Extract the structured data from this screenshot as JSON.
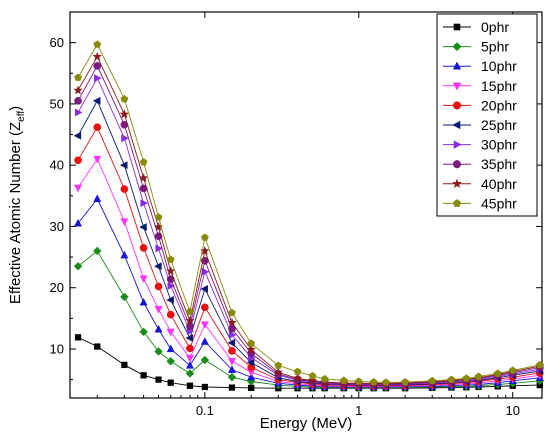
{
  "chart_data": {
    "type": "line",
    "xlabel": "Energy (MeV)",
    "ylabel": {
      "main": "Effective Atomic Number (Z",
      "sub": "eff",
      "tail": ")"
    },
    "x_scale": "log",
    "xlim": [
      0.0133,
      15.5
    ],
    "ylim": [
      2.0,
      65.0
    ],
    "x_ticks": [
      {
        "value": 0.1,
        "label": "0.1"
      },
      {
        "value": 1,
        "label": "1"
      },
      {
        "value": 10,
        "label": "10"
      }
    ],
    "y_ticks": [
      10,
      20,
      30,
      40,
      50,
      60
    ],
    "grid": false,
    "legend_position": "top-right",
    "x": [
      0.015,
      0.02,
      0.03,
      0.04,
      0.05,
      0.06,
      0.08,
      0.1,
      0.15,
      0.2,
      0.3,
      0.4,
      0.5,
      0.6,
      0.8,
      1,
      1.25,
      1.5,
      2,
      3,
      4,
      5,
      6,
      8,
      10,
      15
    ],
    "series": [
      {
        "name": "0phr",
        "color": "#000000",
        "marker": "square",
        "values": [
          11.9,
          10.4,
          7.4,
          5.7,
          5.0,
          4.5,
          4.0,
          3.8,
          3.7,
          3.65,
          3.6,
          3.6,
          3.6,
          3.6,
          3.6,
          3.6,
          3.6,
          3.6,
          3.6,
          3.65,
          3.7,
          3.75,
          3.8,
          3.9,
          4.0,
          4.1
        ]
      },
      {
        "name": "5phr",
        "color": "#1a8c1a",
        "marker": "diamond",
        "values": [
          23.5,
          26.0,
          18.5,
          12.8,
          9.6,
          8.0,
          6.0,
          8.2,
          5.4,
          4.7,
          4.1,
          3.9,
          3.8,
          3.75,
          3.7,
          3.7,
          3.7,
          3.7,
          3.75,
          3.8,
          3.85,
          3.9,
          4.0,
          4.2,
          4.4,
          4.8
        ]
      },
      {
        "name": "10phr",
        "color": "#1515d8",
        "marker": "triangle-up",
        "values": [
          30.5,
          34.5,
          25.3,
          17.6,
          13.2,
          10.0,
          7.3,
          11.2,
          6.6,
          5.4,
          4.4,
          4.1,
          3.95,
          3.85,
          3.8,
          3.8,
          3.8,
          3.8,
          3.85,
          3.9,
          4.0,
          4.1,
          4.2,
          4.5,
          4.8,
          5.3
        ]
      },
      {
        "name": "15phr",
        "color": "#ff33ff",
        "marker": "triangle-down",
        "values": [
          36.3,
          41.0,
          30.8,
          21.5,
          16.5,
          12.8,
          8.5,
          14.0,
          8.0,
          6.2,
          4.7,
          4.3,
          4.1,
          4.0,
          3.9,
          3.9,
          3.9,
          3.9,
          3.95,
          4.05,
          4.2,
          4.3,
          4.45,
          4.8,
          5.1,
          5.7
        ]
      },
      {
        "name": "20phr",
        "color": "#e81010",
        "marker": "circle",
        "values": [
          40.8,
          46.2,
          36.1,
          26.5,
          20.2,
          15.6,
          10.1,
          16.8,
          9.7,
          7.0,
          5.0,
          4.55,
          4.3,
          4.15,
          4.05,
          4.0,
          4.0,
          4.0,
          4.05,
          4.2,
          4.35,
          4.5,
          4.7,
          5.1,
          5.4,
          6.1
        ]
      },
      {
        "name": "25phr",
        "color": "#0a1a6e",
        "marker": "triangle-left",
        "values": [
          44.8,
          50.5,
          40.0,
          29.9,
          23.5,
          18.0,
          11.8,
          19.8,
          11.0,
          7.8,
          5.3,
          4.7,
          4.45,
          4.3,
          4.15,
          4.1,
          4.1,
          4.1,
          4.15,
          4.3,
          4.5,
          4.65,
          4.85,
          5.3,
          5.7,
          6.4
        ]
      },
      {
        "name": "30phr",
        "color": "#8a2be2",
        "marker": "triangle-right",
        "values": [
          48.6,
          54.2,
          44.4,
          33.8,
          26.4,
          20.3,
          12.9,
          22.6,
          12.3,
          8.6,
          5.7,
          4.9,
          4.6,
          4.4,
          4.25,
          4.2,
          4.2,
          4.2,
          4.25,
          4.45,
          4.6,
          4.8,
          5.0,
          5.5,
          5.9,
          6.7
        ]
      },
      {
        "name": "35phr",
        "color": "#7a1a80",
        "marker": "circle",
        "values": [
          50.5,
          56.2,
          46.6,
          36.2,
          28.4,
          21.4,
          13.7,
          24.4,
          13.3,
          9.3,
          5.9,
          5.05,
          4.7,
          4.5,
          4.35,
          4.3,
          4.3,
          4.3,
          4.35,
          4.55,
          4.75,
          4.95,
          5.15,
          5.7,
          6.1,
          7.0
        ]
      },
      {
        "name": "40phr",
        "color": "#8b1a1a",
        "marker": "star",
        "values": [
          52.2,
          57.7,
          48.3,
          37.9,
          29.9,
          22.7,
          14.6,
          26.0,
          14.3,
          9.9,
          6.2,
          5.2,
          4.85,
          4.6,
          4.45,
          4.4,
          4.4,
          4.4,
          4.45,
          4.65,
          4.85,
          5.05,
          5.3,
          5.85,
          6.3,
          7.2
        ]
      },
      {
        "name": "45phr",
        "color": "#8a8a0a",
        "marker": "pentagon",
        "values": [
          54.3,
          59.7,
          50.8,
          40.5,
          31.5,
          24.6,
          16.1,
          28.2,
          15.9,
          10.9,
          7.3,
          6.3,
          5.6,
          5.1,
          4.85,
          4.7,
          4.6,
          4.55,
          4.6,
          4.8,
          5.0,
          5.2,
          5.5,
          6.0,
          6.5,
          7.4
        ]
      }
    ]
  }
}
